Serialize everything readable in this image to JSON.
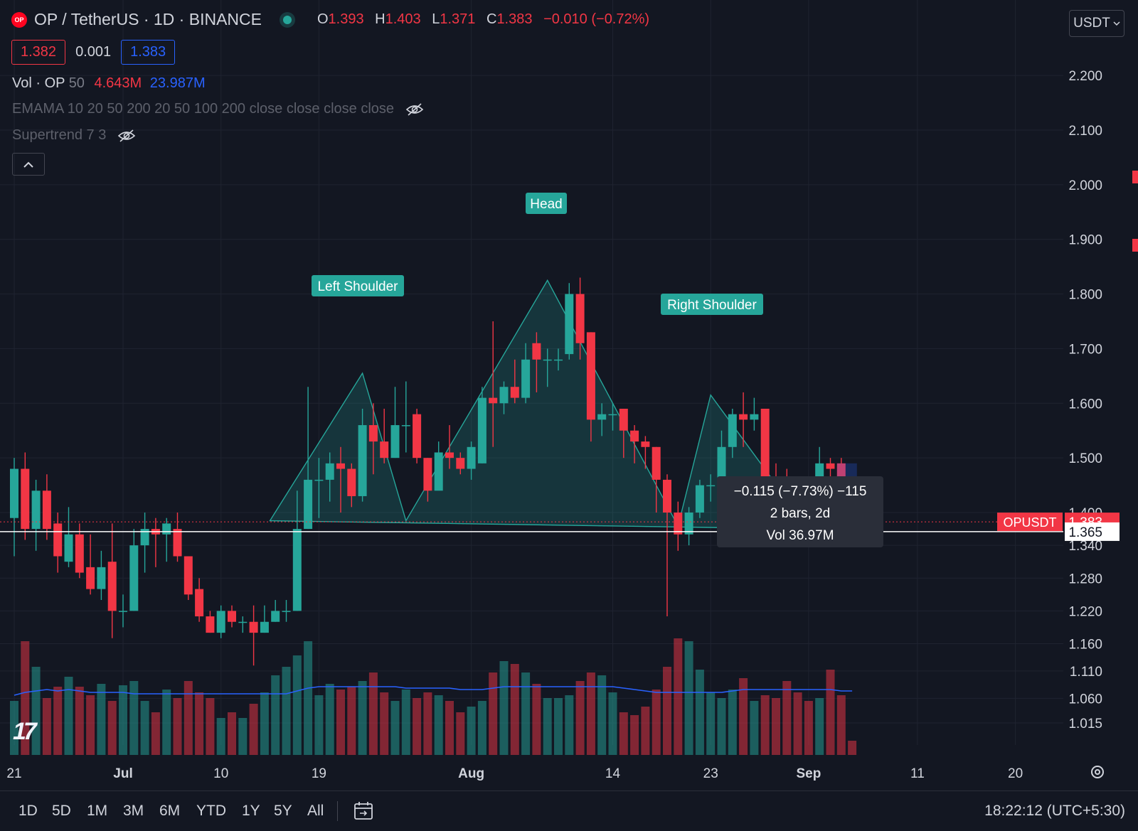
{
  "header": {
    "logo_text": "OP",
    "symbol_title": "OP / TetherUS · 1D · BINANCE",
    "ohlc": [
      {
        "key": "O",
        "value": "1.393"
      },
      {
        "key": "H",
        "value": "1.403"
      },
      {
        "key": "L",
        "value": "1.371"
      },
      {
        "key": "C",
        "value": "1.383"
      }
    ],
    "change": "−0.010 (−0.72%)",
    "bid": "1.382",
    "spread": "0.001",
    "ask": "1.383",
    "volume_label": "Vol · OP",
    "volume_period": "50",
    "volume_value": "4.643M",
    "volume_ma": "23.987M",
    "indicator_1": "EMAMA 10 20 50 200 20 50 100 200 close close close close",
    "indicator_2": "Supertrend 7 3",
    "currency": "USDT"
  },
  "colors": {
    "background": "#131722",
    "up": "#26a69a",
    "down": "#f23645",
    "volume_ma": "#2962ff",
    "pattern_fill": "rgba(38,166,154,0.22)"
  },
  "chart_data": {
    "type": "candlestick",
    "symbol": "OPUSDT",
    "interval": "1D",
    "y_range": [
      0.985,
      2.26
    ],
    "y_ticks": [
      "2.200",
      "2.100",
      "2.000",
      "1.900",
      "1.800",
      "1.700",
      "1.600",
      "1.500",
      "1.400",
      "1.340",
      "1.280",
      "1.220",
      "1.160",
      "1.110",
      "1.060",
      "1.015"
    ],
    "x_ticks": [
      "21",
      "Jul",
      "10",
      "19",
      "Aug",
      "14",
      "23",
      "Sep",
      "11",
      "20"
    ],
    "candles": [
      [
        1.39,
        1.48,
        1.5,
        1.32
      ],
      [
        1.48,
        1.37,
        1.51,
        1.35
      ],
      [
        1.37,
        1.44,
        1.46,
        1.33
      ],
      [
        1.44,
        1.37,
        1.47,
        1.35
      ],
      [
        1.38,
        1.32,
        1.4,
        1.29
      ],
      [
        1.31,
        1.36,
        1.41,
        1.3
      ],
      [
        1.36,
        1.29,
        1.38,
        1.28
      ],
      [
        1.3,
        1.26,
        1.36,
        1.25
      ],
      [
        1.26,
        1.3,
        1.33,
        1.24
      ],
      [
        1.31,
        1.22,
        1.38,
        1.17
      ],
      [
        1.22,
        1.22,
        1.25,
        1.19
      ],
      [
        1.22,
        1.34,
        1.37,
        1.22
      ],
      [
        1.34,
        1.37,
        1.4,
        1.29
      ],
      [
        1.37,
        1.36,
        1.39,
        1.3
      ],
      [
        1.36,
        1.38,
        1.39,
        1.31
      ],
      [
        1.37,
        1.32,
        1.4,
        1.31
      ],
      [
        1.32,
        1.25,
        1.32,
        1.24
      ],
      [
        1.26,
        1.21,
        1.28,
        1.2
      ],
      [
        1.21,
        1.18,
        1.22,
        1.18
      ],
      [
        1.18,
        1.22,
        1.23,
        1.17
      ],
      [
        1.22,
        1.2,
        1.23,
        1.19
      ],
      [
        1.2,
        1.2,
        1.21,
        1.18
      ],
      [
        1.2,
        1.18,
        1.23,
        1.12
      ],
      [
        1.18,
        1.2,
        1.23,
        1.18
      ],
      [
        1.2,
        1.22,
        1.24,
        1.2
      ],
      [
        1.22,
        1.22,
        1.24,
        1.2
      ],
      [
        1.22,
        1.37,
        1.44,
        1.22
      ],
      [
        1.37,
        1.46,
        1.63,
        1.37
      ],
      [
        1.46,
        1.46,
        1.5,
        1.39
      ],
      [
        1.46,
        1.49,
        1.51,
        1.42
      ],
      [
        1.49,
        1.48,
        1.52,
        1.4
      ],
      [
        1.48,
        1.43,
        1.49,
        1.41
      ],
      [
        1.43,
        1.56,
        1.59,
        1.42
      ],
      [
        1.56,
        1.53,
        1.6,
        1.47
      ],
      [
        1.53,
        1.5,
        1.59,
        1.49
      ],
      [
        1.5,
        1.56,
        1.63,
        1.5
      ],
      [
        1.56,
        1.56,
        1.64,
        1.51
      ],
      [
        1.58,
        1.5,
        1.59,
        1.49
      ],
      [
        1.5,
        1.44,
        1.5,
        1.42
      ],
      [
        1.44,
        1.51,
        1.53,
        1.45
      ],
      [
        1.51,
        1.5,
        1.56,
        1.48
      ],
      [
        1.5,
        1.48,
        1.51,
        1.47
      ],
      [
        1.48,
        1.52,
        1.53,
        1.46
      ],
      [
        1.49,
        1.61,
        1.63,
        1.49
      ],
      [
        1.61,
        1.6,
        1.75,
        1.52
      ],
      [
        1.6,
        1.63,
        1.64,
        1.58
      ],
      [
        1.63,
        1.61,
        1.68,
        1.6
      ],
      [
        1.61,
        1.68,
        1.71,
        1.6
      ],
      [
        1.71,
        1.68,
        1.73,
        1.62
      ],
      [
        1.68,
        1.68,
        1.7,
        1.63
      ],
      [
        1.68,
        1.68,
        1.7,
        1.66
      ],
      [
        1.69,
        1.8,
        1.82,
        1.68
      ],
      [
        1.8,
        1.71,
        1.83,
        1.68
      ],
      [
        1.73,
        1.57,
        1.73,
        1.53
      ],
      [
        1.57,
        1.58,
        1.6,
        1.54
      ],
      [
        1.58,
        1.58,
        1.6,
        1.55
      ],
      [
        1.59,
        1.55,
        1.59,
        1.5
      ],
      [
        1.55,
        1.53,
        1.56,
        1.49
      ],
      [
        1.53,
        1.52,
        1.54,
        1.48
      ],
      [
        1.52,
        1.46,
        1.52,
        1.4
      ],
      [
        1.46,
        1.4,
        1.47,
        1.21
      ],
      [
        1.4,
        1.36,
        1.42,
        1.33
      ],
      [
        1.36,
        1.4,
        1.41,
        1.34
      ],
      [
        1.4,
        1.45,
        1.46,
        1.39
      ],
      [
        1.45,
        1.45,
        1.47,
        1.42
      ],
      [
        1.46,
        1.52,
        1.55,
        1.44
      ],
      [
        1.52,
        1.58,
        1.59,
        1.5
      ],
      [
        1.58,
        1.57,
        1.62,
        1.52
      ],
      [
        1.57,
        1.58,
        1.61,
        1.55
      ],
      [
        1.59,
        1.46,
        1.59,
        1.45
      ],
      [
        1.46,
        1.45,
        1.49,
        1.44
      ],
      [
        1.45,
        1.43,
        1.48,
        1.42
      ],
      [
        1.44,
        1.41,
        1.45,
        1.4
      ],
      [
        1.41,
        1.37,
        1.42,
        1.36
      ],
      [
        1.41,
        1.49,
        1.52,
        1.41
      ],
      [
        1.49,
        1.48,
        1.5,
        1.45
      ],
      [
        1.49,
        1.39,
        1.5,
        1.36
      ],
      [
        1.39,
        1.38,
        1.4,
        1.37
      ]
    ],
    "volumes": [
      38,
      80,
      62,
      40,
      48,
      55,
      48,
      42,
      50,
      38,
      49,
      52,
      38,
      30,
      46,
      40,
      52,
      44,
      40,
      26,
      30,
      26,
      36,
      44,
      56,
      62,
      70,
      80,
      42,
      50,
      46,
      48,
      52,
      58,
      44,
      38,
      46,
      40,
      44,
      42,
      38,
      30,
      34,
      38,
      58,
      66,
      64,
      58,
      50,
      40,
      40,
      42,
      52,
      58,
      56,
      44,
      30,
      28,
      34,
      46,
      62,
      82,
      80,
      60,
      44,
      40,
      46,
      54,
      38,
      42,
      40,
      52,
      44,
      38,
      40,
      60,
      42,
      10
    ],
    "volume_ma": [
      42,
      44,
      45,
      46,
      45,
      46,
      45,
      44,
      44,
      44,
      44,
      43,
      43,
      43,
      43,
      43,
      43,
      43,
      43,
      43,
      43,
      43,
      43,
      43,
      43,
      43,
      45,
      47,
      48,
      48,
      48,
      48,
      48,
      48,
      48,
      48,
      47,
      47,
      47,
      47,
      47,
      46,
      46,
      46,
      47,
      48,
      48,
      48,
      48,
      48,
      48,
      48,
      48,
      48,
      48,
      48,
      47,
      46,
      45,
      44,
      44,
      44,
      44,
      44,
      44,
      44,
      45,
      46,
      46,
      46,
      46,
      46,
      46,
      46,
      46,
      46,
      45,
      45
    ],
    "last_price": "1.383",
    "last_price_label": "OPUSDT",
    "neckline_price": "1.365",
    "measure_tooltip": {
      "line1": "−0.115 (−7.73%) −115",
      "line2": "2 bars, 2d",
      "line3": "Vol 36.97M"
    },
    "pattern_labels": {
      "left": "Left Shoulder",
      "head": "Head",
      "right": "Right Shoulder"
    }
  },
  "timeframes": [
    "1D",
    "5D",
    "1M",
    "3M",
    "6M",
    "YTD",
    "1Y",
    "5Y",
    "All"
  ],
  "clock": "18:22:12 (UTC+5:30)"
}
